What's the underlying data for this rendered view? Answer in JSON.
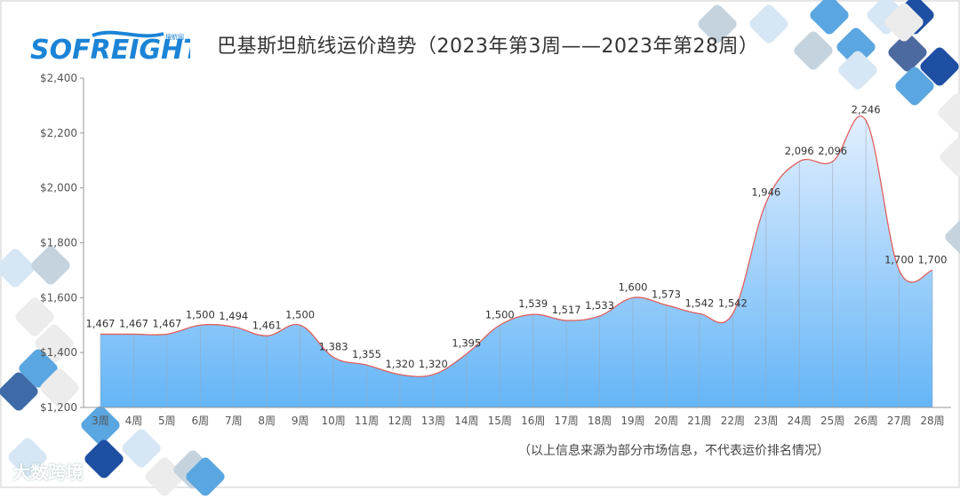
{
  "header": {
    "logo_text": "SOFREIGHT",
    "logo_subtext": "搜航网",
    "title": "巴基斯坦航线运价趋势（2023年第3周——2023年第28周）"
  },
  "footer": {
    "note": "（以上信息来源为部分市场信息，不代表运价排名情况）",
    "watermark": "大数跨境"
  },
  "colors": {
    "line": "#e06060",
    "area_top": "#e3efff",
    "area_bottom": "#64b5f6",
    "axis": "#999999",
    "logo": "#1b84d6"
  },
  "chart_data": {
    "type": "area",
    "title": "巴基斯坦航线运价趋势（2023年第3周——2023年第28周）",
    "xlabel": "",
    "ylabel": "",
    "ylim": [
      1200,
      2400
    ],
    "yticks": [
      1200,
      1400,
      1600,
      1800,
      2000,
      2200,
      2400
    ],
    "ytick_labels": [
      "$1,200",
      "$1,400",
      "$1,600",
      "$1,800",
      "$2,000",
      "$2,200",
      "$2,400"
    ],
    "categories": [
      "3周",
      "4周",
      "5周",
      "6周",
      "7周",
      "8周",
      "9周",
      "10周",
      "11周",
      "12周",
      "13周",
      "14周",
      "15周",
      "16周",
      "17周",
      "18周",
      "19周",
      "20周",
      "21周",
      "22周",
      "23周",
      "24周",
      "25周",
      "26周",
      "27周",
      "28周"
    ],
    "values": [
      1467,
      1467,
      1467,
      1500,
      1494,
      1461,
      1500,
      1383,
      1355,
      1320,
      1320,
      1395,
      1500,
      1539,
      1517,
      1533,
      1600,
      1573,
      1542,
      1542,
      1946,
      2096,
      2096,
      2246,
      1700,
      1700
    ],
    "data_labels": [
      "1,467",
      "1,467",
      "1,467",
      "1,500",
      "1,494",
      "1,461",
      "1,500",
      "1,383",
      "1,355",
      "1,320",
      "1,320",
      "1,395",
      "1,500",
      "1,539",
      "1,517",
      "1,533",
      "1,600",
      "1,573",
      "1,542",
      "1,542",
      "1,946",
      "2,096",
      "2,096",
      "2,246",
      "1,700",
      "1,700"
    ],
    "grid": false,
    "legend": null,
    "smooth": true
  }
}
